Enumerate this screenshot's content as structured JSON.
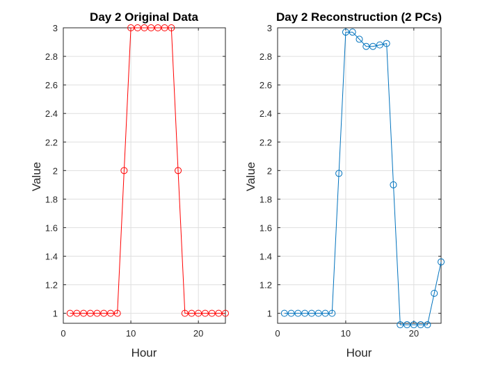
{
  "chart_data": [
    {
      "type": "line",
      "title": "Day 2 Original Data",
      "xlabel": "Hour",
      "ylabel": "Value",
      "xlim": [
        0,
        24
      ],
      "ylim": [
        0.93,
        3
      ],
      "xticks": [
        0,
        10,
        20
      ],
      "yticks": [
        1,
        1.2,
        1.4,
        1.6,
        1.8,
        2,
        2.2,
        2.4,
        2.6,
        2.8,
        3
      ],
      "grid": true,
      "marker": "circle",
      "color": "#ff0000",
      "x": [
        1,
        2,
        3,
        4,
        5,
        6,
        7,
        8,
        9,
        10,
        11,
        12,
        13,
        14,
        15,
        16,
        17,
        18,
        19,
        20,
        21,
        22,
        23,
        24
      ],
      "y": [
        1,
        1,
        1,
        1,
        1,
        1,
        1,
        1,
        2,
        3,
        3,
        3,
        3,
        3,
        3,
        3,
        2,
        1,
        1,
        1,
        1,
        1,
        1,
        1
      ]
    },
    {
      "type": "line",
      "title": "Day 2 Reconstruction (2 PCs)",
      "xlabel": "Hour",
      "ylabel": "Value",
      "xlim": [
        0,
        24
      ],
      "ylim": [
        0.93,
        3
      ],
      "xticks": [
        0,
        10,
        20
      ],
      "yticks": [
        1,
        1.2,
        1.4,
        1.6,
        1.8,
        2,
        2.2,
        2.4,
        2.6,
        2.8,
        3
      ],
      "grid": true,
      "marker": "circle",
      "color": "#0072bd",
      "x": [
        1,
        2,
        3,
        4,
        5,
        6,
        7,
        8,
        9,
        10,
        11,
        12,
        13,
        14,
        15,
        16,
        17,
        18,
        19,
        20,
        21,
        22,
        23,
        24
      ],
      "y": [
        1,
        1,
        1,
        1,
        1,
        1,
        1,
        1,
        1.98,
        2.97,
        2.97,
        2.92,
        2.87,
        2.87,
        2.88,
        2.89,
        1.9,
        0.92,
        0.92,
        0.92,
        0.92,
        0.92,
        1.14,
        1.36
      ]
    }
  ]
}
